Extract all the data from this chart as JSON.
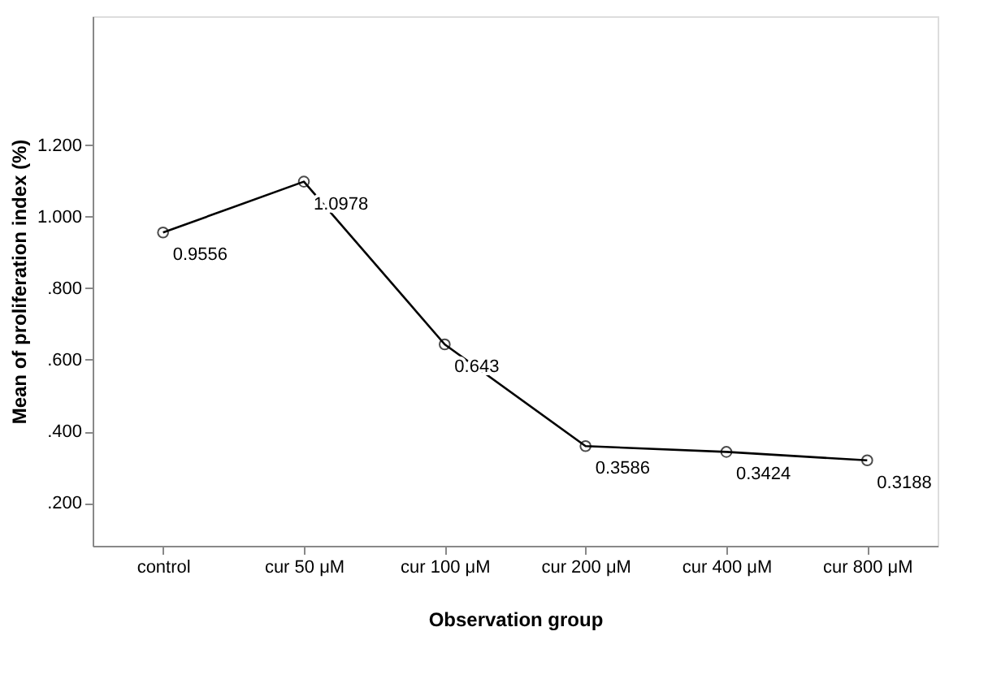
{
  "chart_data": {
    "type": "line",
    "xlabel": "Observation group",
    "ylabel": "Mean of proliferation index (%)",
    "categories": [
      "control",
      "cur 50 μM",
      "cur 100 μM",
      "cur 200 μM",
      "cur 400 μM",
      "cur 800 μM"
    ],
    "series": [
      {
        "color": "#000000",
        "values": [
          0.9556,
          1.0978,
          0.643,
          0.3586,
          0.3424,
          0.3188
        ]
      }
    ],
    "ylim": [
      0.08,
      1.56
    ],
    "yticks": [
      {
        "value": 0.2,
        "label": ".200"
      },
      {
        "value": 0.4,
        "label": ".400"
      },
      {
        "value": 0.6,
        "label": ".600"
      },
      {
        "value": 0.8,
        "label": ".800"
      },
      {
        "value": 1.0,
        "label": "1.000"
      },
      {
        "value": 1.2,
        "label": "1.200"
      }
    ],
    "data_labels": true,
    "marker": "circle",
    "line_style": "solid",
    "grid": false
  }
}
